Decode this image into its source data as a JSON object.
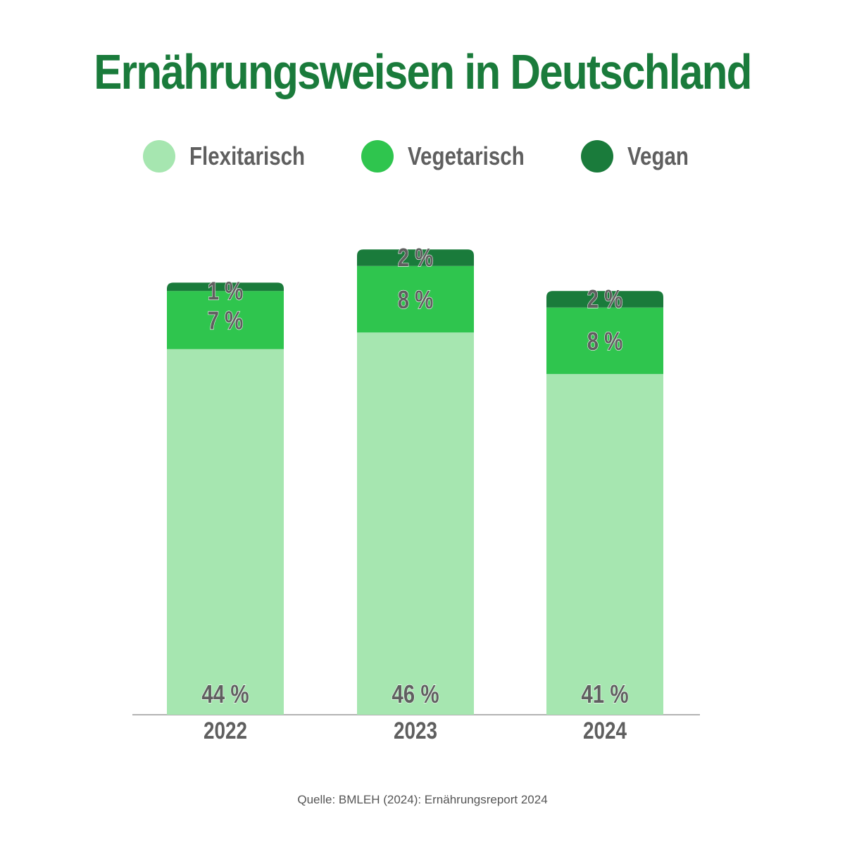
{
  "chart_data": {
    "type": "bar",
    "stacked": true,
    "title": "Ernährungsweisen in Deutschland",
    "categories": [
      "2022",
      "2023",
      "2024"
    ],
    "series": [
      {
        "name": "Flexitarisch",
        "values": [
          44,
          46,
          41
        ],
        "labels": [
          "44 %",
          "46 %",
          "41 %"
        ],
        "color": "#a6e6b0"
      },
      {
        "name": "Vegetarisch",
        "values": [
          7,
          8,
          8
        ],
        "labels": [
          "7 %",
          "8 %",
          "8 %"
        ],
        "color": "#2fc54e"
      },
      {
        "name": "Vegan",
        "values": [
          1,
          2,
          2
        ],
        "labels": [
          "1 %",
          "2 %",
          "2 %"
        ],
        "color": "#1a7b3b"
      }
    ],
    "legend_position": "top-center",
    "grid": false,
    "source": "Quelle: BMLEH (2024): Ernährungsreport 2024"
  },
  "colors": {
    "title": "#1a7b3b",
    "text": "#5f5f5f",
    "axis": "#9a9a9a"
  }
}
